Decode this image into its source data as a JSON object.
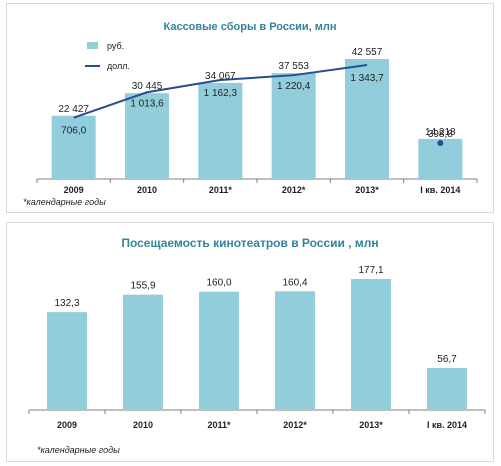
{
  "colors": {
    "bar": "#92cddc",
    "line": "#254e8c",
    "title": "#31849b",
    "axis": "#808080"
  },
  "chart_data": [
    {
      "type": "bar",
      "title": "Кассовые сборы в России, млн",
      "categories": [
        "2009",
        "2010",
        "2011*",
        "2012*",
        "2013*",
        "I кв. 2014"
      ],
      "series": [
        {
          "name": "руб.",
          "type": "bar",
          "values": [
            22427,
            30445,
            34067,
            37553,
            42557,
            14218
          ],
          "labels": [
            "22 427",
            "30 445",
            "34 067",
            "37 553",
            "42 557",
            "14 218"
          ]
        },
        {
          "name": "долл.",
          "type": "line",
          "values": [
            706.0,
            1013.6,
            1162.3,
            1220.4,
            1343.7,
            398.8
          ],
          "labels": [
            "706,0",
            "1 013,6",
            "1 162,3",
            "1 220,4",
            "1 343,7",
            "398,8"
          ]
        }
      ],
      "legend": "top-left",
      "grid": false,
      "footnote": "*календарные годы"
    },
    {
      "type": "bar",
      "title": "Посещаемость кинотеатров в России , млн",
      "categories": [
        "2009",
        "2010",
        "2011*",
        "2012*",
        "2013*",
        "I кв. 2014"
      ],
      "series": [
        {
          "values": [
            132.3,
            155.9,
            160.0,
            160.4,
            177.1,
            56.7
          ],
          "labels": [
            "132,3",
            "155,9",
            "160,0",
            "160,4",
            "177,1",
            "56,7"
          ]
        }
      ],
      "grid": false,
      "footnote": "*календарные годы"
    }
  ]
}
